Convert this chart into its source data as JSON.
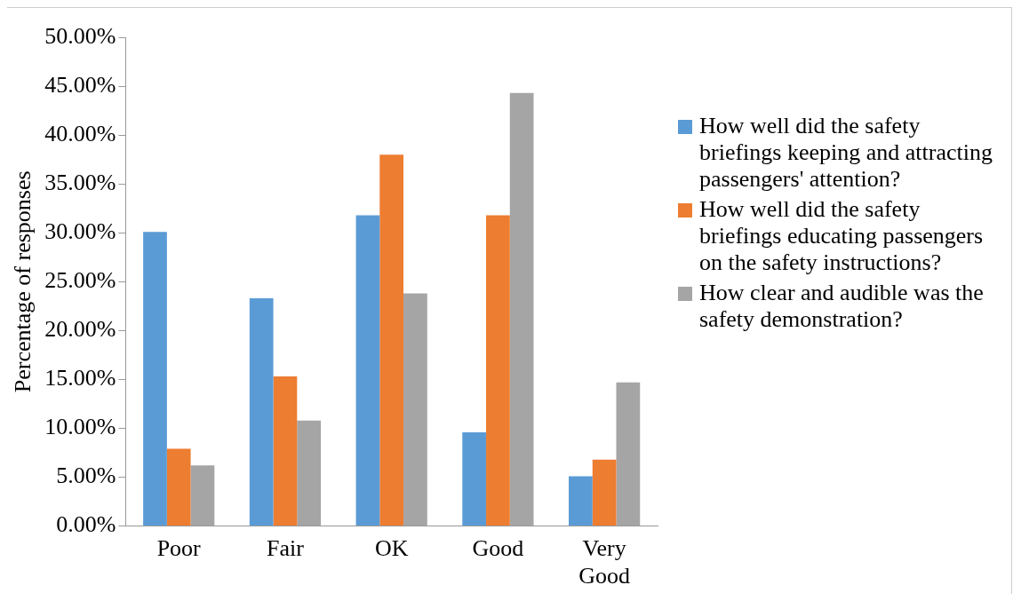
{
  "chart_data": {
    "type": "bar",
    "ylabel": "Percentage of responses",
    "categories": [
      "Poor",
      "Fair",
      "OK",
      "Good",
      "Very Good"
    ],
    "series": [
      {
        "name": "How well did the safety briefings keeping and attracting passengers' attention?",
        "color": "#5b9bd5",
        "values": [
          30.1,
          23.3,
          31.8,
          9.6,
          5.1
        ]
      },
      {
        "name": "How well did the safety briefings educating passengers on the safety instructions?",
        "color": "#ed7d31",
        "values": [
          7.9,
          15.3,
          38.0,
          31.8,
          6.8
        ]
      },
      {
        "name": "How clear and audible was the safety demonstration?",
        "color": "#a5a5a5",
        "values": [
          6.2,
          10.8,
          23.8,
          44.3,
          14.7
        ]
      }
    ],
    "ylim": [
      0,
      50
    ],
    "yticks": [
      {
        "value": 0,
        "label": "0.00%"
      },
      {
        "value": 5,
        "label": "5.00%"
      },
      {
        "value": 10,
        "label": "10.00%"
      },
      {
        "value": 15,
        "label": "15.00%"
      },
      {
        "value": 20,
        "label": "20.00%"
      },
      {
        "value": 25,
        "label": "25.00%"
      },
      {
        "value": 30,
        "label": "30.00%"
      },
      {
        "value": 35,
        "label": "35.00%"
      },
      {
        "value": 40,
        "label": "40.00%"
      },
      {
        "value": 45,
        "label": "45.00%"
      },
      {
        "value": 50,
        "label": "50.00%"
      }
    ],
    "grid": false,
    "legend": "right"
  }
}
